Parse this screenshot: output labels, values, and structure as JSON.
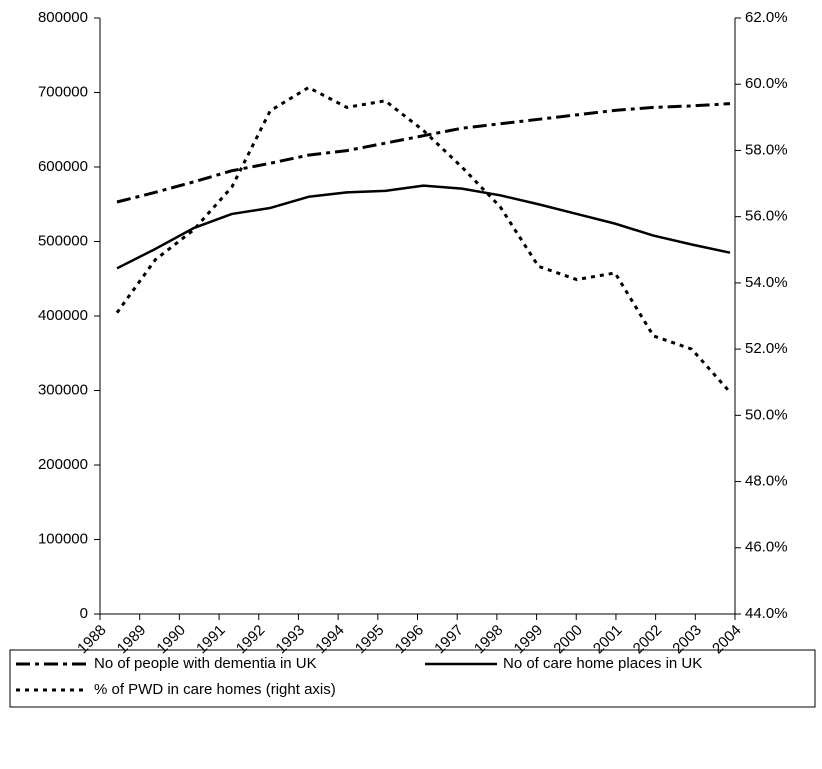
{
  "chart_data": {
    "type": "line",
    "categories": [
      "1988",
      "1989",
      "1990",
      "1991",
      "1992",
      "1993",
      "1994",
      "1995",
      "1996",
      "1997",
      "1998",
      "1999",
      "2000",
      "2001",
      "2002",
      "2003",
      "2004"
    ],
    "series": [
      {
        "name": "No of people with dementia in UK",
        "color": "#000000",
        "dash": "dash-dot",
        "axis": "y",
        "values": [
          553000,
          566000,
          580000,
          595000,
          605000,
          616000,
          622000,
          632000,
          642000,
          652000,
          658000,
          664000,
          670000,
          676000,
          680000,
          682000,
          685000
        ]
      },
      {
        "name": "No of care home places in UK",
        "color": "#000000",
        "dash": "solid",
        "axis": "y",
        "values": [
          464000,
          490000,
          518000,
          537000,
          545000,
          560000,
          566000,
          568000,
          575000,
          571000,
          562000,
          550000,
          537000,
          524000,
          508000,
          496000,
          485000
        ]
      },
      {
        "name": "% of PWD in care homes (right axis)",
        "color": "#000000",
        "dash": "dot",
        "axis": "y2",
        "values": [
          53.1,
          54.7,
          55.6,
          56.9,
          59.2,
          59.9,
          59.3,
          59.5,
          58.6,
          57.5,
          56.3,
          54.5,
          54.1,
          54.3,
          52.4,
          52.0,
          50.7
        ]
      }
    ],
    "ylim": [
      0,
      800000
    ],
    "yticks": [
      0,
      100000,
      200000,
      300000,
      400000,
      500000,
      600000,
      700000,
      800000
    ],
    "y2lim": [
      44,
      62
    ],
    "y2ticks": [
      {
        "value": 44,
        "label": "44.0%"
      },
      {
        "value": 46,
        "label": "46.0%"
      },
      {
        "value": 48,
        "label": "48.0%"
      },
      {
        "value": 50,
        "label": "50.0%"
      },
      {
        "value": 52,
        "label": "52.0%"
      },
      {
        "value": 54,
        "label": "54.0%"
      },
      {
        "value": 56,
        "label": "56.0%"
      },
      {
        "value": 58,
        "label": "58.0%"
      },
      {
        "value": 60,
        "label": "60.0%"
      },
      {
        "value": 62,
        "label": "62.0%"
      }
    ],
    "grid": false,
    "legend": "bottom"
  }
}
